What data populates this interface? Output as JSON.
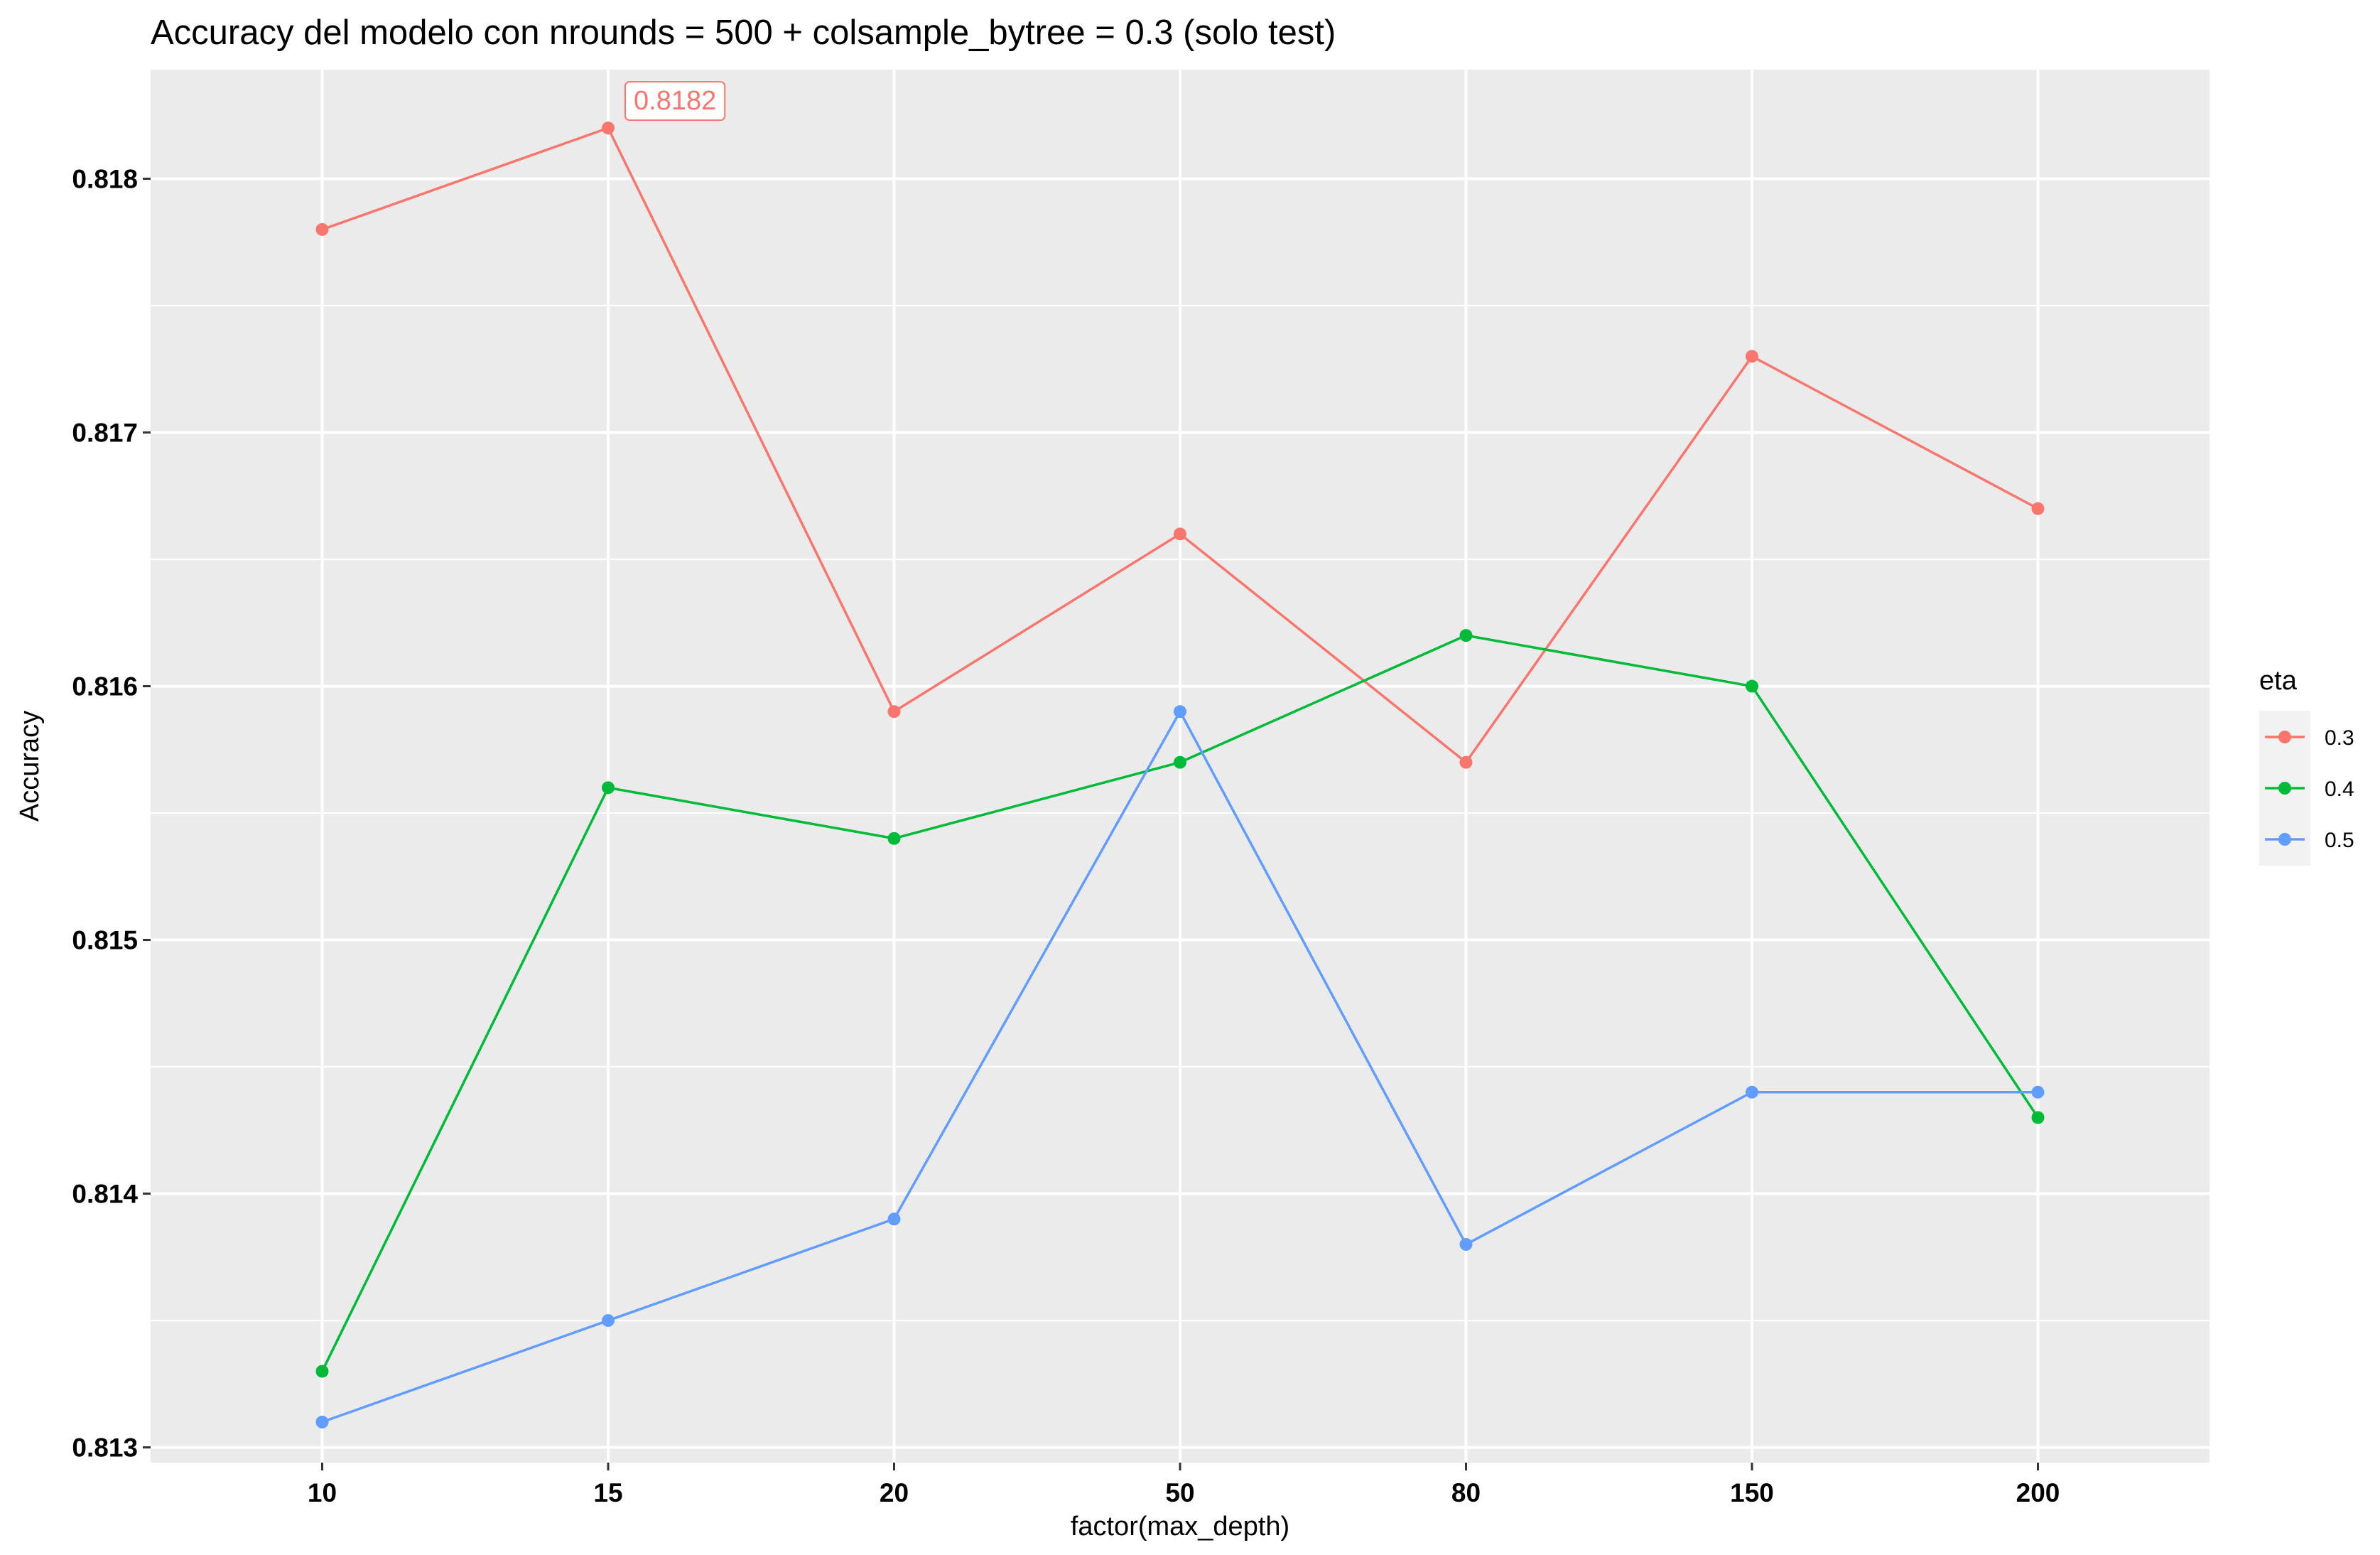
{
  "chart_data": {
    "type": "line",
    "title": "Accuracy del modelo con nrounds = 500 + colsample_bytree = 0.3 (solo test)",
    "xlabel": "factor(max_depth)",
    "ylabel": "Accuracy",
    "categories": [
      "10",
      "15",
      "20",
      "50",
      "80",
      "150",
      "200"
    ],
    "ylim": [
      0.81294,
      0.81843
    ],
    "yticks": [
      0.813,
      0.814,
      0.815,
      0.816,
      0.817,
      0.818
    ],
    "ytick_labels": [
      "0.813",
      "0.814",
      "0.815",
      "0.816",
      "0.817",
      "0.818"
    ],
    "grid": true,
    "legend": {
      "title": "eta",
      "position": "right"
    },
    "series": [
      {
        "name": "0.3",
        "color": "#F8766D",
        "values": [
          0.8178,
          0.8182,
          0.8159,
          0.8166,
          0.8157,
          0.8173,
          0.8167
        ]
      },
      {
        "name": "0.4",
        "color": "#00BA38",
        "values": [
          0.8133,
          0.8156,
          0.8154,
          0.8157,
          0.8162,
          0.816,
          0.8143
        ]
      },
      {
        "name": "0.5",
        "color": "#619CFF",
        "values": [
          0.8131,
          0.8135,
          0.8139,
          0.8159,
          0.8138,
          0.8144,
          0.8144
        ]
      }
    ],
    "annotations": [
      {
        "text": "0.8182",
        "series": 0,
        "category_index": 1,
        "color": "#F8766D"
      }
    ]
  }
}
